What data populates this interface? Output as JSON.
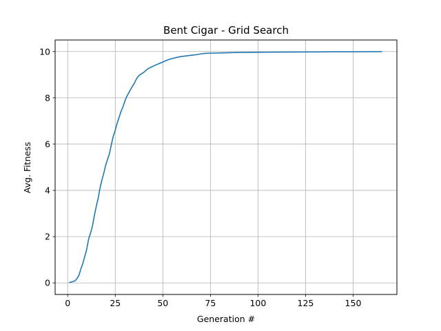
{
  "chart_data": {
    "type": "line",
    "title": "Bent Cigar - Grid Search",
    "xlabel": "Generation #",
    "ylabel": "Avg. Fitness",
    "xlim": [
      -6.6,
      173
    ],
    "ylim": [
      -0.5,
      10.5
    ],
    "xticks": [
      0,
      25,
      50,
      75,
      100,
      125,
      150
    ],
    "yticks": [
      0,
      2,
      4,
      6,
      8,
      10
    ],
    "grid": true,
    "line_color": "#1f77b4",
    "series": [
      {
        "x": [
          1,
          2,
          3,
          4,
          5,
          6,
          7,
          8,
          9,
          10,
          11,
          12,
          13,
          14,
          15,
          16,
          17,
          18,
          19,
          20,
          21,
          22,
          23,
          24,
          25,
          26,
          27,
          28,
          29,
          30,
          31,
          32,
          33,
          34,
          35,
          36,
          37,
          38,
          39,
          40,
          42,
          44,
          46,
          48,
          50,
          52,
          54,
          56,
          58,
          60,
          62,
          64,
          66,
          68,
          70,
          72,
          75,
          80,
          85,
          90,
          95,
          100,
          110,
          120,
          130,
          140,
          150,
          160,
          165
        ],
        "y": [
          0.02,
          0.04,
          0.06,
          0.1,
          0.2,
          0.35,
          0.62,
          0.85,
          1.15,
          1.45,
          1.9,
          2.15,
          2.45,
          2.9,
          3.3,
          3.65,
          4.1,
          4.45,
          4.75,
          5.1,
          5.35,
          5.6,
          6.0,
          6.35,
          6.6,
          6.9,
          7.15,
          7.4,
          7.6,
          7.85,
          8.05,
          8.2,
          8.35,
          8.5,
          8.62,
          8.8,
          8.92,
          9.0,
          9.05,
          9.1,
          9.25,
          9.33,
          9.41,
          9.48,
          9.55,
          9.62,
          9.68,
          9.72,
          9.76,
          9.79,
          9.81,
          9.83,
          9.85,
          9.87,
          9.9,
          9.92,
          9.93,
          9.94,
          9.95,
          9.96,
          9.965,
          9.97,
          9.975,
          9.98,
          9.985,
          9.99,
          9.992,
          9.995,
          9.997
        ]
      }
    ]
  }
}
